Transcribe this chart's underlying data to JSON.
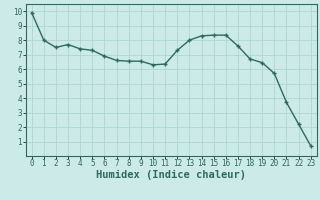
{
  "x": [
    0,
    1,
    2,
    3,
    4,
    5,
    6,
    7,
    8,
    9,
    10,
    11,
    12,
    13,
    14,
    15,
    16,
    17,
    18,
    19,
    20,
    21,
    22,
    23
  ],
  "y": [
    9.9,
    8.0,
    7.5,
    7.7,
    7.4,
    7.3,
    6.9,
    6.6,
    6.55,
    6.55,
    6.3,
    6.35,
    7.3,
    8.0,
    8.3,
    8.35,
    8.35,
    7.6,
    6.7,
    6.45,
    5.7,
    3.7,
    2.2,
    0.7
  ],
  "line_color": "#2e6b5e",
  "marker": "+",
  "markersize": 3.5,
  "linewidth": 1.0,
  "bg_color": "#cceae7",
  "grid_color": "#add6d0",
  "xlabel": "Humidex (Indice chaleur)",
  "xlim": [
    -0.5,
    23.5
  ],
  "ylim": [
    0,
    10.5
  ],
  "xticks": [
    0,
    1,
    2,
    3,
    4,
    5,
    6,
    7,
    8,
    9,
    10,
    11,
    12,
    13,
    14,
    15,
    16,
    17,
    18,
    19,
    20,
    21,
    22,
    23
  ],
  "yticks": [
    1,
    2,
    3,
    4,
    5,
    6,
    7,
    8,
    9,
    10
  ],
  "tick_fontsize": 5.5,
  "label_fontsize": 7.5,
  "label_fontweight": "bold",
  "tick_color": "#2e6b5e",
  "spine_color": "#2e6b5e"
}
